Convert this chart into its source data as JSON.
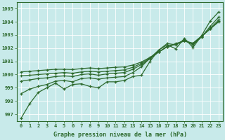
{
  "x": [
    0,
    1,
    2,
    3,
    4,
    5,
    6,
    7,
    8,
    9,
    10,
    11,
    12,
    13,
    14,
    15,
    16,
    17,
    18,
    19,
    20,
    21,
    22,
    23
  ],
  "line1": [
    996.7,
    997.8,
    998.65,
    999.0,
    999.35,
    998.9,
    999.25,
    999.3,
    999.1,
    999.0,
    999.45,
    999.45,
    999.55,
    999.85,
    999.95,
    1001.0,
    1001.85,
    1002.25,
    1001.95,
    1002.75,
    1002.05,
    1002.95,
    1004.05,
    1004.75
  ],
  "line2": [
    998.55,
    998.9,
    999.1,
    999.25,
    999.5,
    999.55,
    999.45,
    999.7,
    999.75,
    999.65,
    999.75,
    999.8,
    999.85,
    1000.15,
    1000.6,
    1001.25,
    1001.85,
    1002.35,
    1002.25,
    1002.65,
    1002.25,
    1002.85,
    1003.65,
    1004.35
  ],
  "line3": [
    999.5,
    999.6,
    999.7,
    999.75,
    999.85,
    999.9,
    999.85,
    1000.0,
    1000.05,
    999.95,
    1000.05,
    1000.1,
    1000.15,
    1000.4,
    1000.75,
    1001.2,
    1001.7,
    1002.15,
    1002.3,
    1002.55,
    1002.3,
    1002.85,
    1003.5,
    1004.15
  ],
  "line4": [
    999.9,
    999.95,
    1000.0,
    1000.05,
    1000.1,
    1000.15,
    1000.1,
    1000.2,
    1000.25,
    1000.2,
    1000.25,
    1000.3,
    1000.35,
    1000.55,
    1000.85,
    1001.25,
    1001.7,
    1002.1,
    1002.3,
    1002.55,
    1002.35,
    1002.9,
    1003.45,
    1004.05
  ],
  "line5": [
    1000.2,
    1000.25,
    1000.3,
    1000.35,
    1000.4,
    1000.4,
    1000.38,
    1000.45,
    1000.5,
    1000.45,
    1000.5,
    1000.55,
    1000.58,
    1000.72,
    1000.95,
    1001.3,
    1001.72,
    1002.1,
    1002.35,
    1002.55,
    1002.38,
    1002.92,
    1003.45,
    1004.0
  ],
  "bg_color": "#c8eaea",
  "line_color": "#2d6a2d",
  "xlabel": "Graphe pression niveau de la mer (hPa)",
  "ylim": [
    996.5,
    1005.5
  ],
  "xlim": [
    -0.5,
    23.5
  ],
  "yticks": [
    997,
    998,
    999,
    1000,
    1001,
    1002,
    1003,
    1004,
    1005
  ],
  "xticks": [
    0,
    1,
    2,
    3,
    4,
    5,
    6,
    7,
    8,
    9,
    10,
    11,
    12,
    13,
    14,
    15,
    16,
    17,
    18,
    19,
    20,
    21,
    22,
    23
  ]
}
